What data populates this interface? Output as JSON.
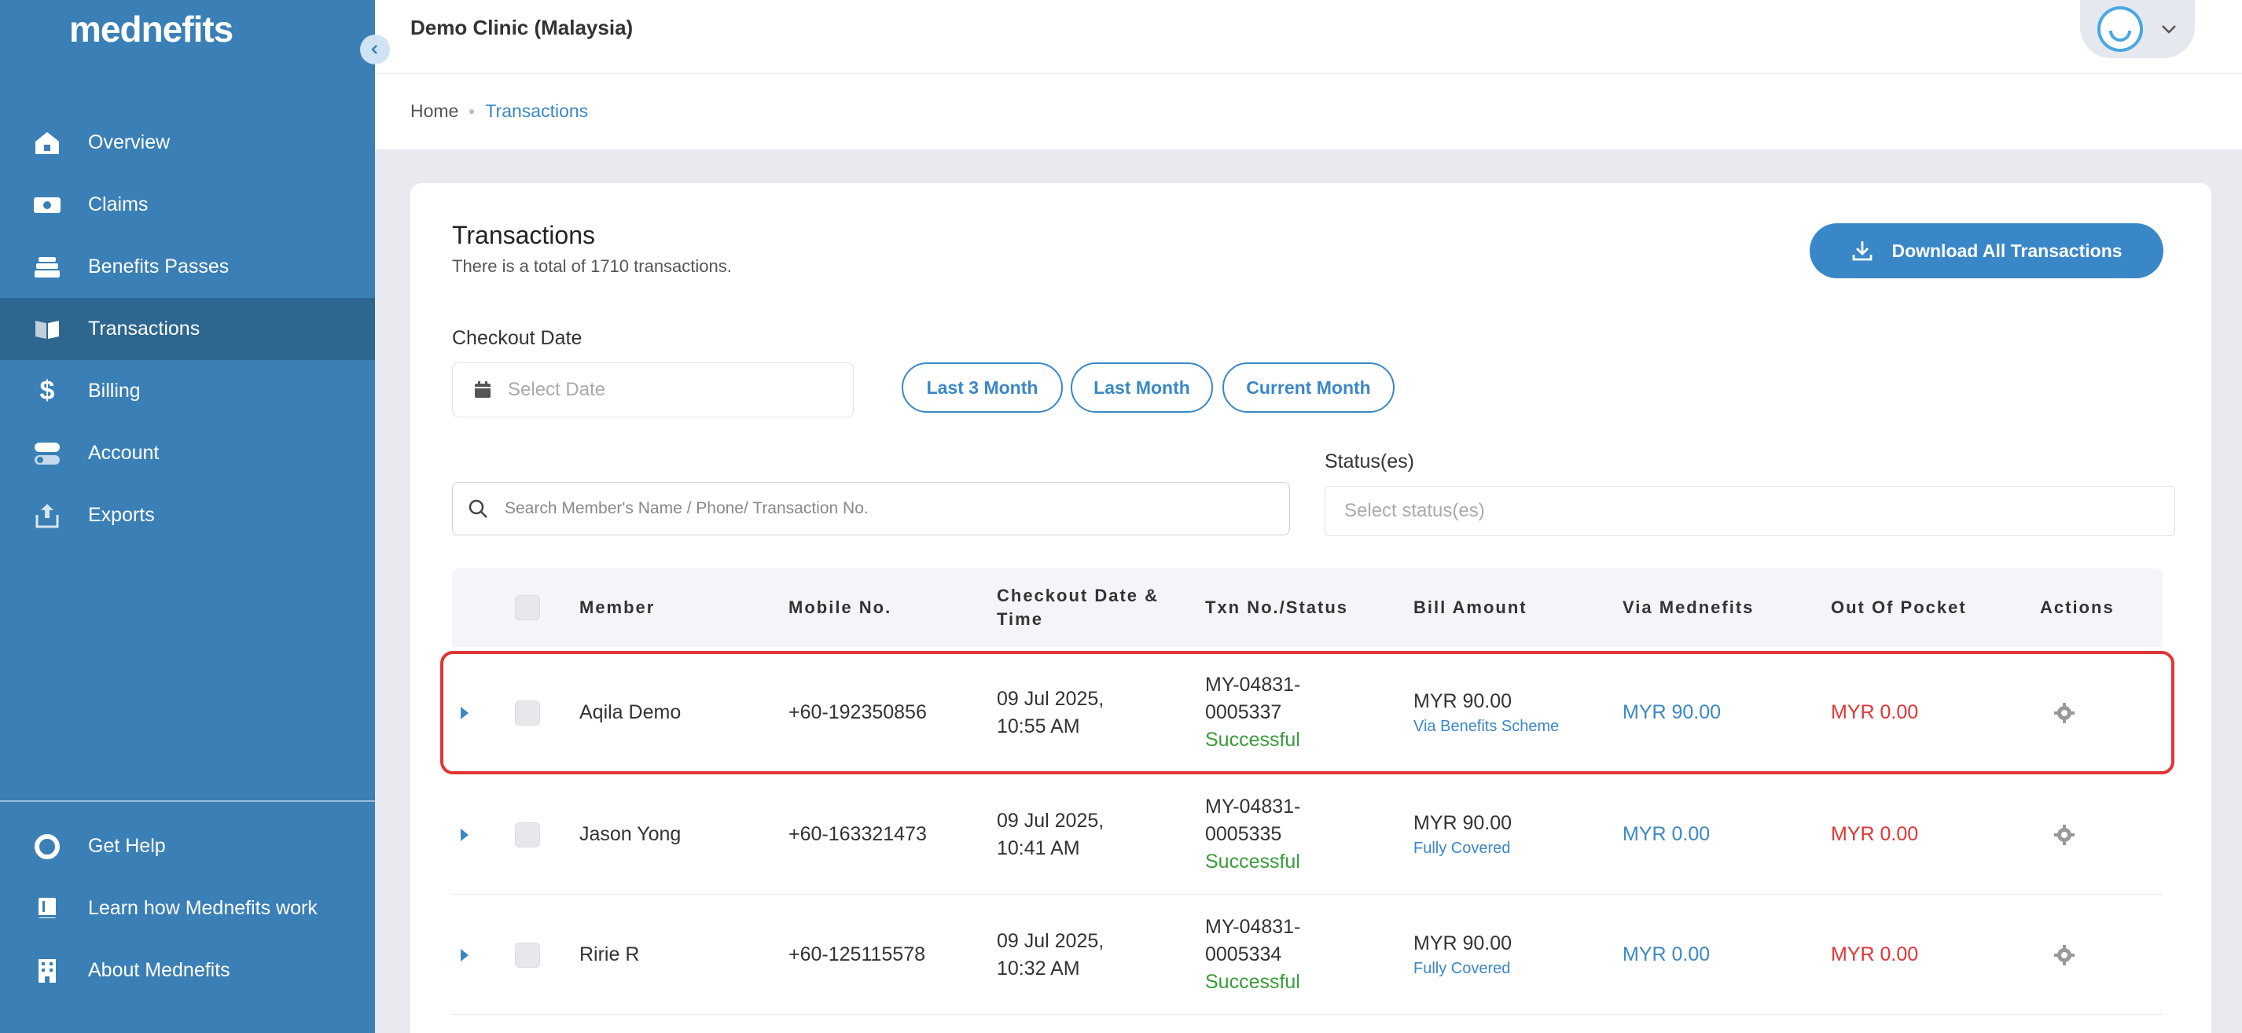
{
  "sidebar": {
    "logo": "mednefits",
    "items": [
      {
        "label": "Overview",
        "icon": "home-icon"
      },
      {
        "label": "Claims",
        "icon": "money-icon"
      },
      {
        "label": "Benefits Passes",
        "icon": "stack-icon"
      },
      {
        "label": "Transactions",
        "icon": "book-icon",
        "active": true
      },
      {
        "label": "Billing",
        "icon": "dollar-icon"
      },
      {
        "label": "Account",
        "icon": "toggle-icon"
      },
      {
        "label": "Exports",
        "icon": "upload-icon"
      }
    ],
    "bottom_items": [
      {
        "label": "Get Help",
        "icon": "lifebuoy-icon"
      },
      {
        "label": "Learn how Mednefits work",
        "icon": "booklet-icon"
      },
      {
        "label": "About Mednefits",
        "icon": "building-icon"
      }
    ]
  },
  "header": {
    "clinic_name": "Demo Clinic (Malaysia)"
  },
  "breadcrumb": {
    "home": "Home",
    "current": "Transactions"
  },
  "main": {
    "title": "Transactions",
    "subtitle": "There is a total of 1710 transactions.",
    "download_label": "Download All Transactions",
    "checkout_label": "Checkout Date",
    "date_placeholder": "Select Date",
    "chips": [
      "Last 3 Month",
      "Last Month",
      "Current Month"
    ],
    "search_placeholder": "Search Member's Name / Phone/ Transaction No.",
    "status_label": "Status(es)",
    "status_placeholder": "Select status(es)"
  },
  "table": {
    "columns": [
      "Member",
      "Mobile No.",
      "Checkout Date & Time",
      "Txn No./Status",
      "Bill Amount",
      "Via Mednefits",
      "Out Of Pocket",
      "Actions"
    ],
    "rows": [
      {
        "member": "Aqila Demo",
        "mobile": "+60-192350856",
        "date": "09 Jul 2025,",
        "time": "10:55 AM",
        "txn1": "MY-04831-",
        "txn2": "0005337",
        "status": "Successful",
        "bill": "MYR 90.00",
        "bill_note": "Via Benefits Scheme",
        "via": "MYR 90.00",
        "oop": "MYR 0.00"
      },
      {
        "member": "Jason Yong",
        "mobile": "+60-163321473",
        "date": "09 Jul 2025,",
        "time": "10:41 AM",
        "txn1": "MY-04831-",
        "txn2": "0005335",
        "status": "Successful",
        "bill": "MYR 90.00",
        "bill_note": "Fully Covered",
        "via": "MYR 0.00",
        "oop": "MYR 0.00"
      },
      {
        "member": "Ririe R",
        "mobile": "+60-125115578",
        "date": "09 Jul 2025,",
        "time": "10:32 AM",
        "txn1": "MY-04831-",
        "txn2": "0005334",
        "status": "Successful",
        "bill": "MYR 90.00",
        "bill_note": "Fully Covered",
        "via": "MYR 0.00",
        "oop": "MYR 0.00"
      }
    ]
  }
}
